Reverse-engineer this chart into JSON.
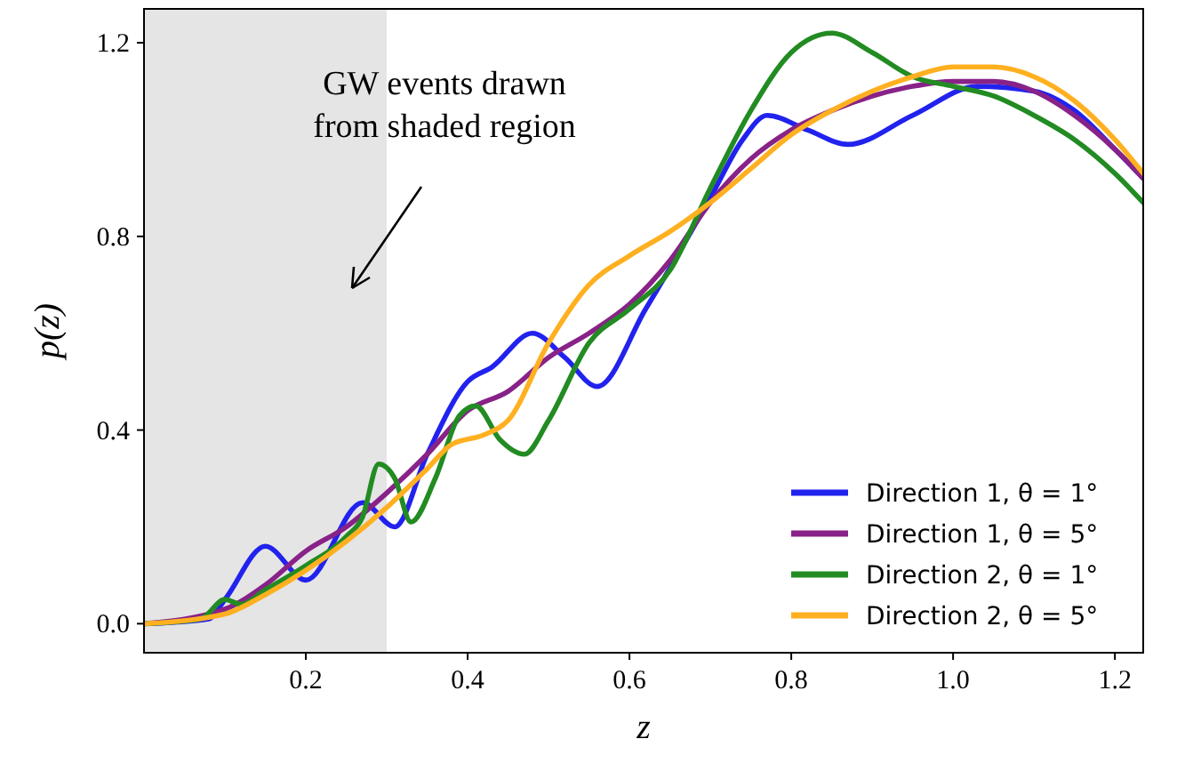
{
  "chart_data": {
    "type": "line",
    "xlabel": "z",
    "ylabel": "p(z)",
    "xlim": [
      0,
      1.235
    ],
    "xticks": [
      0.2,
      0.4,
      0.6,
      0.8,
      {
        "value": 1,
        "label": "1.0"
      },
      1.2
    ],
    "ylim": [
      -0.06,
      1.27
    ],
    "yticks": [
      {
        "value": 0,
        "label": "0.0"
      },
      0.4,
      0.8,
      1.2
    ],
    "grid": false,
    "legend": "bottom right",
    "line_style": "solid",
    "marker": "none",
    "bands": [
      {
        "axis": "x",
        "from": 0,
        "to": 0.3,
        "color": "#e5e5e5"
      }
    ],
    "annotations": [
      "GW events drawn\nfrom shaded region"
    ],
    "series": [
      {
        "name": "Direction 1, θ = 1°",
        "color": "#2222ee",
        "x": [
          0,
          0.08,
          0.1,
          0.15,
          0.2,
          0.27,
          0.31,
          0.35,
          0.4,
          0.43,
          0.48,
          0.52,
          0.56,
          0.62,
          0.7,
          0.74,
          0.77,
          0.82,
          0.87,
          0.95,
          1.03,
          1.1,
          1.15,
          1.2,
          1.235
        ],
        "values": [
          0,
          0.01,
          0.05,
          0.16,
          0.09,
          0.25,
          0.2,
          0.35,
          0.5,
          0.53,
          0.6,
          0.55,
          0.49,
          0.65,
          0.88,
          1.0,
          1.05,
          1.02,
          0.99,
          1.05,
          1.11,
          1.1,
          1.06,
          0.98,
          0.92
        ]
      },
      {
        "name": "Direction 1, θ = 5°",
        "color": "#882288",
        "x": [
          0,
          0.1,
          0.15,
          0.2,
          0.25,
          0.3,
          0.35,
          0.4,
          0.45,
          0.5,
          0.55,
          0.6,
          0.65,
          0.7,
          0.75,
          0.8,
          0.85,
          0.9,
          0.95,
          1.0,
          1.05,
          1.1,
          1.15,
          1.2,
          1.235
        ],
        "values": [
          0,
          0.03,
          0.08,
          0.15,
          0.2,
          0.27,
          0.35,
          0.44,
          0.48,
          0.55,
          0.6,
          0.66,
          0.75,
          0.87,
          0.96,
          1.02,
          1.06,
          1.09,
          1.11,
          1.12,
          1.12,
          1.1,
          1.05,
          0.98,
          0.92
        ]
      },
      {
        "name": "Direction 2, θ = 1°",
        "color": "#228b22",
        "x": [
          0,
          0.07,
          0.1,
          0.12,
          0.15,
          0.2,
          0.25,
          0.27,
          0.29,
          0.31,
          0.33,
          0.36,
          0.39,
          0.41,
          0.44,
          0.47,
          0.5,
          0.55,
          0.6,
          0.65,
          0.7,
          0.75,
          0.8,
          0.85,
          0.9,
          0.95,
          1.0,
          1.05,
          1.1,
          1.15,
          1.2,
          1.235
        ],
        "values": [
          0,
          0.01,
          0.05,
          0.04,
          0.07,
          0.12,
          0.18,
          0.22,
          0.33,
          0.3,
          0.21,
          0.3,
          0.43,
          0.45,
          0.38,
          0.35,
          0.42,
          0.58,
          0.65,
          0.73,
          0.9,
          1.06,
          1.18,
          1.22,
          1.18,
          1.13,
          1.11,
          1.09,
          1.05,
          1.0,
          0.93,
          0.87
        ]
      },
      {
        "name": "Direction 2, θ = 5°",
        "color": "#ffb020",
        "x": [
          0,
          0.1,
          0.15,
          0.2,
          0.25,
          0.3,
          0.35,
          0.38,
          0.42,
          0.45,
          0.5,
          0.55,
          0.6,
          0.65,
          0.7,
          0.75,
          0.8,
          0.85,
          0.9,
          0.95,
          1.0,
          1.05,
          1.1,
          1.15,
          1.2,
          1.235
        ],
        "values": [
          0,
          0.02,
          0.06,
          0.11,
          0.17,
          0.24,
          0.32,
          0.37,
          0.39,
          0.42,
          0.58,
          0.7,
          0.76,
          0.81,
          0.87,
          0.94,
          1.01,
          1.06,
          1.1,
          1.13,
          1.15,
          1.15,
          1.13,
          1.08,
          1.0,
          0.93
        ]
      }
    ]
  }
}
